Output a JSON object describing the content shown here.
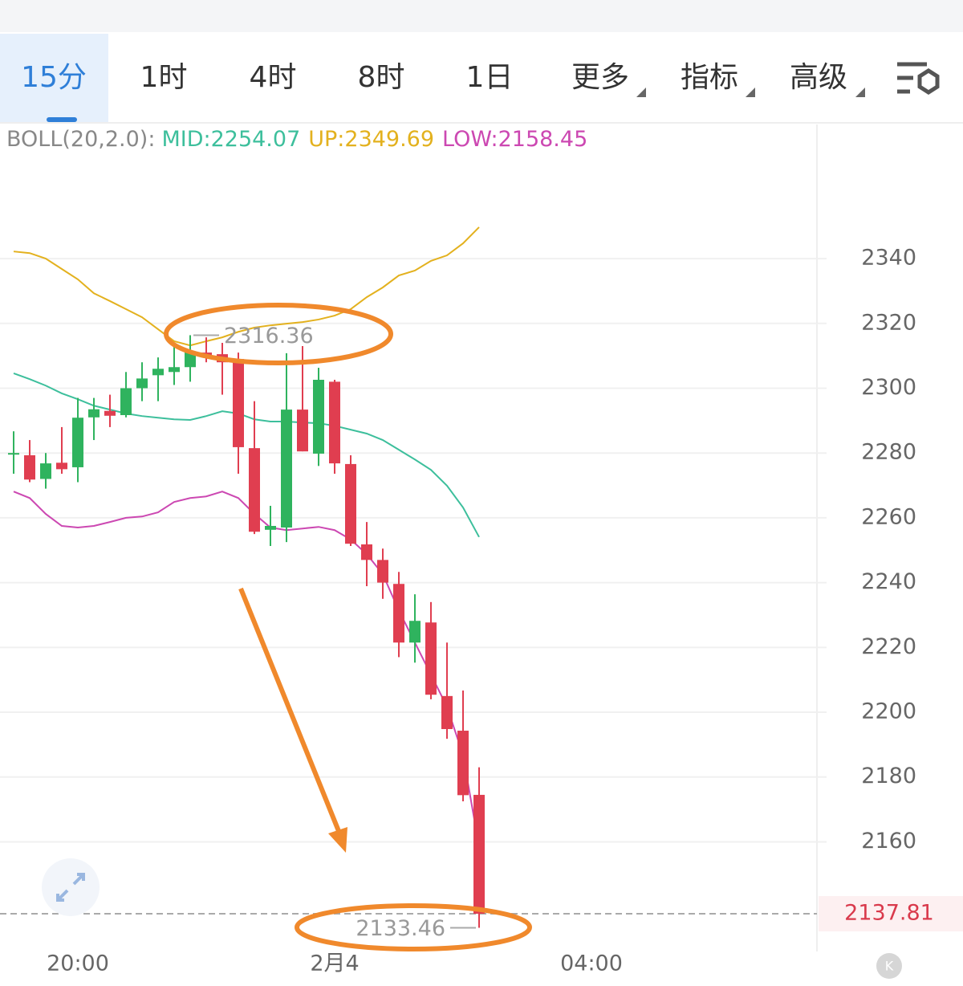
{
  "tabs": [
    "15分",
    "1时",
    "4时",
    "8时",
    "1日",
    "更多",
    "指标",
    "高级"
  ],
  "chart_data": {
    "type": "candlestick",
    "indicator": "BOLL(20,2.0):",
    "x": [
      0,
      1,
      2,
      3,
      4,
      5,
      6,
      7,
      8,
      9,
      10,
      11,
      12,
      13,
      14,
      15,
      16,
      17,
      18,
      19,
      20,
      21,
      22,
      23,
      24,
      25,
      26,
      27,
      28,
      29
    ],
    "open": [
      2279.5,
      2279.3,
      2272,
      2277,
      2275.6,
      2291,
      2293,
      2291.7,
      2300,
      2304,
      2305,
      2306.5,
      2311,
      2310.5,
      2309,
      2281.5,
      2256.3,
      2257,
      2293.4,
      2279.8,
      2302,
      2276.6,
      2251.8,
      2247,
      2239.6,
      2221.5,
      2227.7,
      2205,
      2194.3,
      2174.5
    ],
    "high": [
      2286.7,
      2284,
      2280,
      2288,
      2297,
      2297,
      2298,
      2305,
      2308,
      2309.5,
      2313,
      2316.36,
      2315.7,
      2314,
      2311,
      2296,
      2263.7,
      2310.8,
      2313,
      2306.3,
      2302.6,
      2279.3,
      2258.7,
      2250.5,
      2243.3,
      2236.4,
      2234,
      2221.5,
      2206.7,
      2183
    ],
    "low": [
      2273.6,
      2271,
      2269,
      2273.6,
      2271,
      2284,
      2288,
      2291,
      2296,
      2296,
      2301,
      2302,
      2308,
      2298,
      2273.6,
      2255,
      2251.3,
      2252.5,
      2280.5,
      2276,
      2273.6,
      2251.3,
      2238.9,
      2235,
      2217,
      2215.3,
      2204,
      2191.8,
      2172.5,
      2133.46
    ],
    "close": [
      2280,
      2271.8,
      2276.8,
      2275,
      2290.9,
      2293.5,
      2291.5,
      2300,
      2303,
      2306,
      2306.5,
      2311,
      2310,
      2308,
      2281.8,
      2255.7,
      2257.5,
      2293.4,
      2280.5,
      2302.6,
      2276.8,
      2252,
      2247,
      2240,
      2221.5,
      2228.2,
      2205.4,
      2194.8,
      2174.4,
      2137.81
    ],
    "up_color": "#2fb35e",
    "down_color": "#e03e50",
    "bands": [
      {
        "name": "MID:",
        "color": "#3dbf9c",
        "values": [
          2304.6,
          2302.8,
          2300.8,
          2298.4,
          2296.6,
          2294.6,
          2293.4,
          2292.2,
          2291.4,
          2290.9,
          2290.4,
          2290.2,
          2291.4,
          2292.9,
          2292.2,
          2290.4,
          2289.7,
          2289.7,
          2289.4,
          2289.2,
          2288.4,
          2287.2,
          2286,
          2284,
          2281,
          2278,
          2274.8,
          2269.9,
          2263.2,
          2254.07
        ]
      },
      {
        "name": "UP:",
        "color": "#e3b11e",
        "values": [
          2342.2,
          2341.7,
          2340,
          2336.8,
          2333.6,
          2329.3,
          2326.9,
          2324.4,
          2321.9,
          2318.2,
          2314.5,
          2313.2,
          2314.5,
          2315.7,
          2317.4,
          2318.7,
          2319.4,
          2319.9,
          2320.4,
          2321.2,
          2322.4,
          2324.4,
          2328.1,
          2331.1,
          2334.8,
          2336.3,
          2339.3,
          2341,
          2344.7,
          2349.69
        ]
      },
      {
        "name": "LOW:",
        "color": "#cc48b2",
        "values": [
          2268.1,
          2266.1,
          2261.2,
          2257.5,
          2257,
          2257.5,
          2258.7,
          2260,
          2260.4,
          2261.7,
          2264.9,
          2266.1,
          2266.6,
          2268.1,
          2266.1,
          2261.2,
          2257,
          2256.2,
          2256.7,
          2257.2,
          2256.2,
          2253.3,
          2248.8,
          2242.6,
          2231.4,
          2221.5,
          2211.6,
          2201.7,
          2186.8,
          2158.45
        ]
      }
    ],
    "xlim": [
      -0.85,
      50.15
    ],
    "xticks": [
      {
        "value": 4,
        "label": "20:00"
      },
      {
        "value": 20,
        "label": "2月4"
      },
      {
        "value": 36,
        "label": "04:00"
      }
    ],
    "ylim": [
      2127.4,
      2381.4
    ],
    "yticks": [
      2160,
      2180,
      2200,
      2220,
      2240,
      2260,
      2280,
      2300,
      2320,
      2340
    ],
    "grid": true
  }
}
